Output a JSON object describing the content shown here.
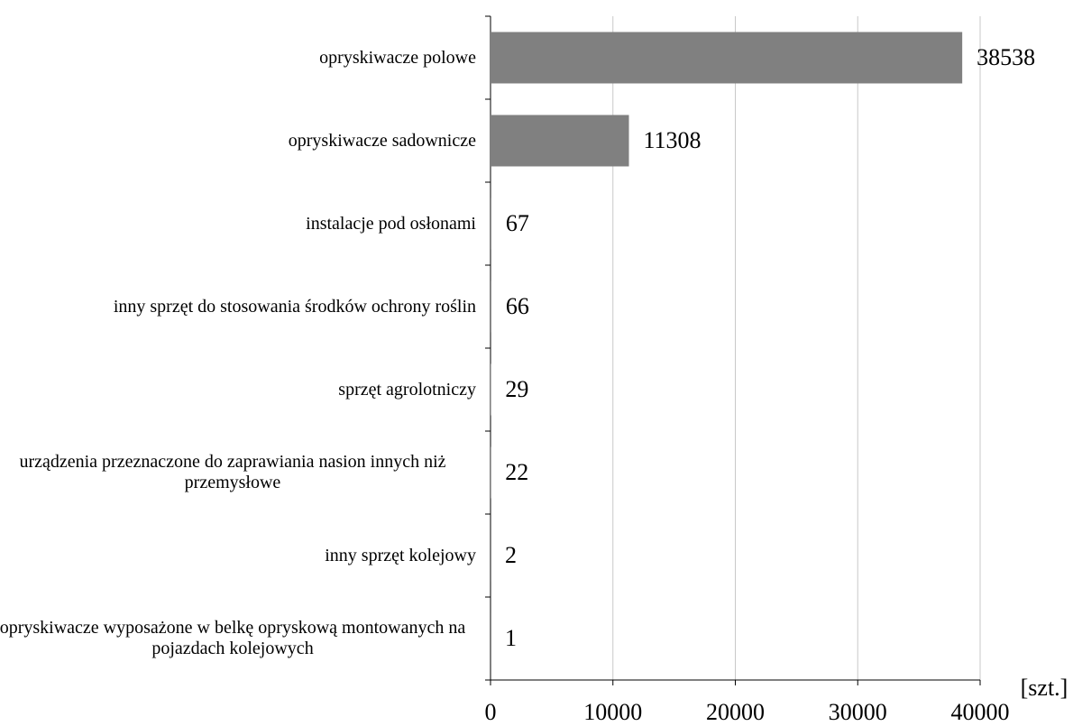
{
  "chart_data": {
    "type": "bar",
    "orientation": "horizontal",
    "categories": [
      "opryskiwacze polowe",
      "opryskiwacze sadownicze",
      "instalacje pod osłonami",
      "inny sprzęt do stosowania środków ochrony roślin",
      "sprzęt agrolotniczy",
      "urządzenia przeznaczone do zaprawiania nasion innych niż przemysłowe",
      "inny sprzęt kolejowy",
      "opryskiwacze wyposażone w belkę opryskową montowanych na pojazdach kolejowych"
    ],
    "values": [
      38538,
      11308,
      67,
      66,
      29,
      22,
      2,
      1
    ],
    "color": "#808080",
    "xlabel": "[szt.]",
    "xlim": [
      0,
      40000
    ],
    "xticks": [
      0,
      10000,
      20000,
      30000,
      40000
    ],
    "grid": true
  }
}
